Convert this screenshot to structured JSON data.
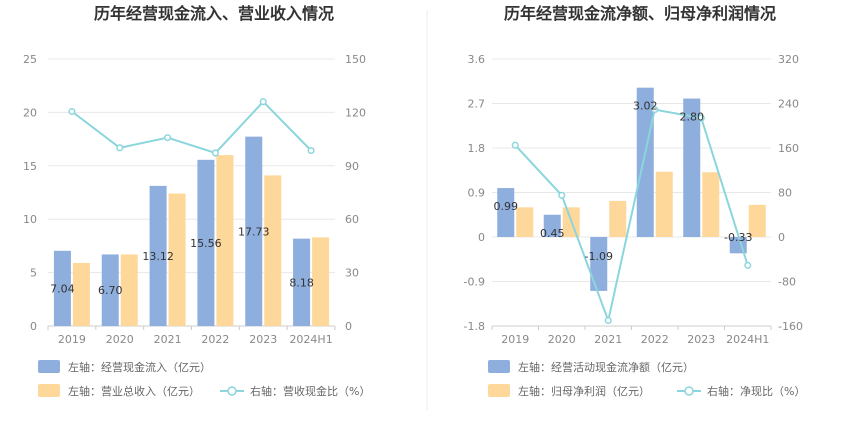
{
  "colors": {
    "bar_primary": "#8eaedd",
    "bar_secondary": "#fdd89a",
    "line": "#8bd6dc",
    "grid": "#e8e8e8",
    "axis_text": "#888888",
    "divider": "#eeeeee"
  },
  "chart_data": [
    {
      "type": "bar",
      "title": "历年经营现金流入、营业收入情况",
      "categories": [
        "2019",
        "2020",
        "2021",
        "2022",
        "2023",
        "2024H1"
      ],
      "left_axis": {
        "min": 0,
        "max": 25,
        "ticks": [
          "0",
          "5",
          "10",
          "15",
          "20",
          "25"
        ]
      },
      "right_axis": {
        "min": 0,
        "max": 150,
        "ticks": [
          "0",
          "30",
          "60",
          "90",
          "120",
          "150"
        ]
      },
      "series": [
        {
          "name": "左轴：经营现金流入（亿元）",
          "axis": "left",
          "kind": "bar",
          "color_key": "bar_primary",
          "values": [
            7.04,
            6.7,
            13.12,
            15.56,
            17.73,
            8.18
          ],
          "labels": [
            "7.04",
            "6.70",
            "13.12",
            "15.56",
            "17.73",
            "8.18"
          ]
        },
        {
          "name": "左轴：营业总收入（亿元）",
          "axis": "left",
          "kind": "bar",
          "color_key": "bar_secondary",
          "values": [
            5.9,
            6.7,
            12.4,
            16.0,
            14.1,
            8.3
          ]
        },
        {
          "name": "右轴：营收现金比（%）",
          "axis": "right",
          "kind": "line",
          "color_key": "line",
          "values": [
            120.5,
            100.1,
            105.8,
            97.2,
            126.0,
            98.6
          ]
        }
      ],
      "legend_rows": [
        [
          "左轴：经营现金流入（亿元）"
        ],
        [
          "左轴：营业总收入（亿元）",
          "右轴：营收现金比（%）"
        ]
      ]
    },
    {
      "type": "bar",
      "title": "历年经营现金流净额、归母净利润情况",
      "categories": [
        "2019",
        "2020",
        "2021",
        "2022",
        "2023",
        "2024H1"
      ],
      "left_axis": {
        "min": -1.8,
        "max": 3.6,
        "ticks": [
          "-1.8",
          "-0.9",
          "0",
          "0.9",
          "1.8",
          "2.7",
          "3.6"
        ]
      },
      "right_axis": {
        "min": -160,
        "max": 320,
        "ticks": [
          "-160",
          "-80",
          "0",
          "80",
          "160",
          "240",
          "320"
        ]
      },
      "series": [
        {
          "name": "左轴：经营活动现金流净额（亿元）",
          "axis": "left",
          "kind": "bar",
          "color_key": "bar_primary",
          "values": [
            0.99,
            0.45,
            -1.09,
            3.02,
            2.8,
            -0.33
          ],
          "labels": [
            "0.99",
            "0.45",
            "-1.09",
            "3.02",
            "2.80",
            "-0.33"
          ]
        },
        {
          "name": "左轴：归母净利润（亿元）",
          "axis": "left",
          "kind": "bar",
          "color_key": "bar_secondary",
          "values": [
            0.6,
            0.6,
            0.73,
            1.32,
            1.31,
            0.65
          ]
        },
        {
          "name": "右轴：净现比（%）",
          "axis": "right",
          "kind": "line",
          "color_key": "line",
          "values": [
            165,
            75,
            -150,
            229,
            214,
            -51
          ]
        }
      ],
      "legend_rows": [
        [
          "左轴：经营活动现金流净额（亿元）"
        ],
        [
          "左轴：归母净利润（亿元）",
          "右轴：净现比（%）"
        ]
      ]
    }
  ]
}
